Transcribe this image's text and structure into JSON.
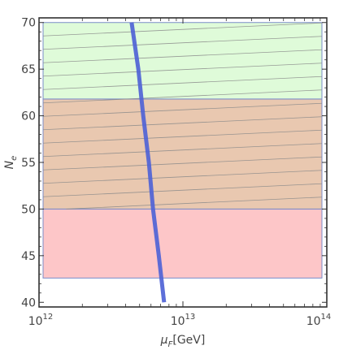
{
  "chart_data": {
    "type": "line",
    "title": "",
    "xlabel": {
      "symbol": "μ",
      "subscript": "F",
      "unit": "[GeV]"
    },
    "ylabel": {
      "symbol": "N",
      "subscript": "e"
    },
    "x_scale": "log",
    "xlim": [
      1000000000000.0,
      100000000000000.0
    ],
    "ylim": [
      39.5,
      70.5
    ],
    "x_ticks": [
      {
        "value": 1000000000000.0,
        "base": "10",
        "exp": "12"
      },
      {
        "value": 10000000000000.0,
        "base": "10",
        "exp": "13"
      },
      {
        "value": 100000000000000.0,
        "base": "10",
        "exp": "14"
      }
    ],
    "y_ticks": [
      40,
      45,
      50,
      55,
      60,
      65,
      70
    ],
    "regions": [
      {
        "y_min": 42.6,
        "y_max": 50,
        "fill": "#fdc6c8",
        "stroke": "#7a8cc8"
      },
      {
        "y_min": 50,
        "y_max": 61.8,
        "fill": "#e9c8b0",
        "stroke": "#7a8cc8"
      },
      {
        "y_min": 61.8,
        "y_max": 70,
        "fill": "#dffbd9",
        "stroke": "#7a8cc8"
      }
    ],
    "hatch": {
      "y_min": 50,
      "y_max": 70,
      "color": "#8a8a8a"
    },
    "series": [
      {
        "color": "#4f63d6",
        "points": [
          {
            "x": 4400000000000.0,
            "y": 70
          },
          {
            "x": 4900000000000.0,
            "y": 65
          },
          {
            "x": 5300000000000.0,
            "y": 60
          },
          {
            "x": 5800000000000.0,
            "y": 55
          },
          {
            "x": 6200000000000.0,
            "y": 50
          },
          {
            "x": 6800000000000.0,
            "y": 45
          },
          {
            "x": 7400000000000.0,
            "y": 40
          }
        ]
      }
    ],
    "grid": false,
    "frame_color": "#222222"
  }
}
